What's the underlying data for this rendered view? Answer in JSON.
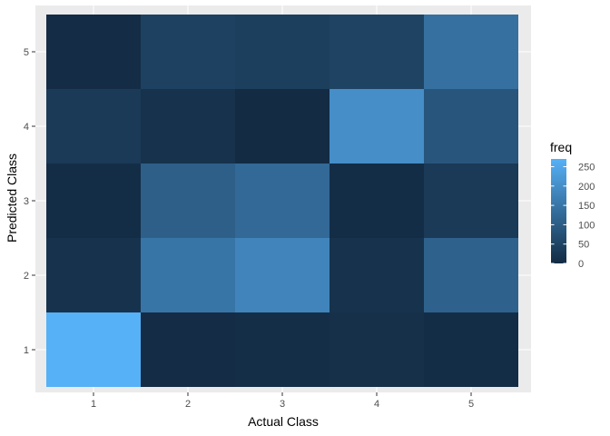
{
  "chart_data": {
    "type": "heatmap",
    "title": "",
    "xlabel": "Actual Class",
    "ylabel": "Predicted Class",
    "x_categories": [
      "1",
      "2",
      "3",
      "4",
      "5"
    ],
    "y_categories": [
      "1",
      "2",
      "3",
      "4",
      "5"
    ],
    "cells": [
      {
        "x": "1",
        "y": "1",
        "freq": 270
      },
      {
        "x": "2",
        "y": "1",
        "freq": 3
      },
      {
        "x": "3",
        "y": "1",
        "freq": 7
      },
      {
        "x": "4",
        "y": "1",
        "freq": 11
      },
      {
        "x": "5",
        "y": "1",
        "freq": 5
      },
      {
        "x": "1",
        "y": "2",
        "freq": 15
      },
      {
        "x": "2",
        "y": "2",
        "freq": 150
      },
      {
        "x": "3",
        "y": "2",
        "freq": 180
      },
      {
        "x": "4",
        "y": "2",
        "freq": 14
      },
      {
        "x": "5",
        "y": "2",
        "freq": 110
      },
      {
        "x": "1",
        "y": "3",
        "freq": 5
      },
      {
        "x": "2",
        "y": "3",
        "freq": 105
      },
      {
        "x": "3",
        "y": "3",
        "freq": 125
      },
      {
        "x": "4",
        "y": "3",
        "freq": 4
      },
      {
        "x": "5",
        "y": "3",
        "freq": 30
      },
      {
        "x": "1",
        "y": "4",
        "freq": 30
      },
      {
        "x": "2",
        "y": "4",
        "freq": 15
      },
      {
        "x": "3",
        "y": "4",
        "freq": 0
      },
      {
        "x": "4",
        "y": "4",
        "freq": 200
      },
      {
        "x": "5",
        "y": "4",
        "freq": 85
      },
      {
        "x": "1",
        "y": "5",
        "freq": 3
      },
      {
        "x": "2",
        "y": "5",
        "freq": 45
      },
      {
        "x": "3",
        "y": "5",
        "freq": 40
      },
      {
        "x": "4",
        "y": "5",
        "freq": 48
      },
      {
        "x": "5",
        "y": "5",
        "freq": 140
      }
    ],
    "legend": {
      "title": "freq",
      "breaks": [
        0,
        50,
        100,
        150,
        200,
        250
      ],
      "range": [
        0,
        270
      ],
      "low_color": "#132B43",
      "high_color": "#56B1F7",
      "position": "right"
    },
    "grid": true,
    "panel_background": "#EBEBEB",
    "gridline_color": "#FFFFFF"
  }
}
